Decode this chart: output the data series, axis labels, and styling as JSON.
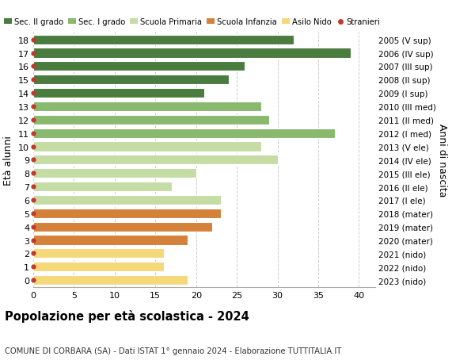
{
  "ages": [
    18,
    17,
    16,
    15,
    14,
    13,
    12,
    11,
    10,
    9,
    8,
    7,
    6,
    5,
    4,
    3,
    2,
    1,
    0
  ],
  "right_labels": [
    "2005 (V sup)",
    "2006 (IV sup)",
    "2007 (III sup)",
    "2008 (II sup)",
    "2009 (I sup)",
    "2010 (III med)",
    "2011 (II med)",
    "2012 (I med)",
    "2013 (V ele)",
    "2014 (IV ele)",
    "2015 (III ele)",
    "2016 (II ele)",
    "2017 (I ele)",
    "2018 (mater)",
    "2019 (mater)",
    "2020 (mater)",
    "2021 (nido)",
    "2022 (nido)",
    "2023 (nido)"
  ],
  "values": [
    32,
    39,
    26,
    24,
    21,
    28,
    29,
    37,
    28,
    30,
    20,
    17,
    23,
    23,
    22,
    19,
    16,
    16,
    19
  ],
  "bar_colors": [
    "#4a7c3f",
    "#4a7c3f",
    "#4a7c3f",
    "#4a7c3f",
    "#4a7c3f",
    "#88b96e",
    "#88b96e",
    "#88b96e",
    "#c5dda4",
    "#c5dda4",
    "#c5dda4",
    "#c5dda4",
    "#c5dda4",
    "#d4813a",
    "#d4813a",
    "#d4813a",
    "#f5d87a",
    "#f5d87a",
    "#f5d87a"
  ],
  "stranieri_dots": [
    18,
    17,
    16,
    15,
    14,
    13,
    12,
    11,
    10,
    9,
    8,
    7,
    6,
    5,
    4,
    3,
    2,
    1,
    0
  ],
  "legend_labels": [
    "Sec. II grado",
    "Sec. I grado",
    "Scuola Primaria",
    "Scuola Infanzia",
    "Asilo Nido",
    "Stranieri"
  ],
  "legend_colors": [
    "#4a7c3f",
    "#88b96e",
    "#c5dda4",
    "#d4813a",
    "#f5d87a",
    "#c0392b"
  ],
  "title": "Popolazione per età scolastica - 2024",
  "subtitle": "COMUNE DI CORBARA (SA) - Dati ISTAT 1° gennaio 2024 - Elaborazione TUTTITALIA.IT",
  "ylabel_left": "Età alunni",
  "ylabel_right": "Anni di nascita",
  "xlim": [
    0,
    42
  ],
  "xticks": [
    0,
    5,
    10,
    15,
    20,
    25,
    30,
    35,
    40
  ],
  "bg_color": "#ffffff",
  "grid_color": "#cccccc",
  "bar_height": 0.72
}
